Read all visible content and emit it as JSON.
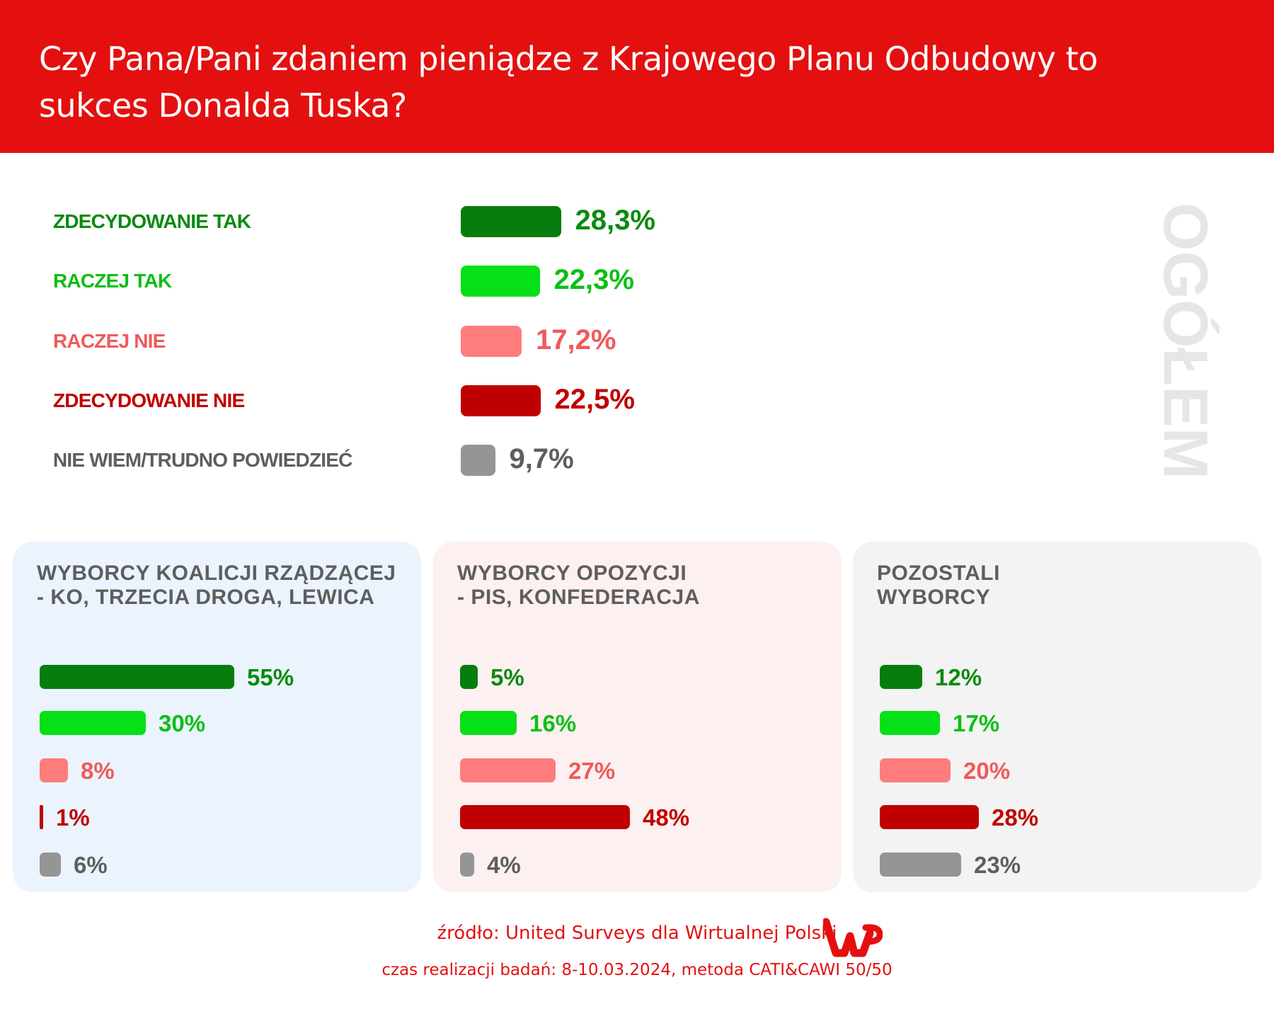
{
  "title": "Czy Pana/Pani zdaniem pieniądze z Krajowego Planu Odbudowy to sukces Donalda Tuska?",
  "colors": {
    "header": "#e41010",
    "categories": [
      {
        "bar": "#067d0c",
        "text": "#0a8a0f"
      },
      {
        "bar": "#06e016",
        "text": "#0bbf14"
      },
      {
        "bar": "#ff7c7c",
        "text": "#f05a5a"
      },
      {
        "bar": "#c00000",
        "text": "#c00000"
      },
      {
        "bar": "#959595",
        "text": "#5e5e5e"
      }
    ]
  },
  "chart_data": [
    {
      "type": "bar",
      "orientation": "horizontal",
      "title": "OGÓŁEM",
      "categories": [
        "ZDECYDOWANIE TAK",
        "RACZEJ TAK",
        "RACZEJ NIE",
        "ZDECYDOWANIE NIE",
        "NIE WIEM/TRUDNO POWIEDZIEĆ"
      ],
      "values": [
        28.3,
        22.3,
        17.2,
        22.5,
        9.7
      ],
      "labels": [
        "28,3%",
        "22,3%",
        "17,2%",
        "22,5%",
        "9,7%"
      ]
    },
    {
      "type": "bar",
      "orientation": "horizontal",
      "title": "WYBORCY KOALICJI RZĄDZĄCEJ - KO, TRZECIA DROGA, LEWICA",
      "title_lines": [
        "WYBORCY KOALICJI RZĄDZĄCEJ",
        "- KO, TRZECIA DROGA, LEWICA"
      ],
      "background": "#ebf4fd",
      "values": [
        55,
        30,
        8,
        1,
        6
      ],
      "labels": [
        "55%",
        "30%",
        "8%",
        "1%",
        "6%"
      ]
    },
    {
      "type": "bar",
      "orientation": "horizontal",
      "title": "WYBORCY OPOZYCJI - PIS, KONFEDERACJA",
      "title_lines": [
        "WYBORCY OPOZYCJI",
        "- PIS, KONFEDERACJA"
      ],
      "background": "#fdf0f0",
      "values": [
        5,
        16,
        27,
        48,
        4
      ],
      "labels": [
        "5%",
        "16%",
        "27%",
        "48%",
        "4%"
      ]
    },
    {
      "type": "bar",
      "orientation": "horizontal",
      "title": "POZOSTALI WYBORCY",
      "title_lines": [
        "POZOSTALI",
        "WYBORCY"
      ],
      "background": "#f3f3f3",
      "values": [
        12,
        17,
        20,
        28,
        23
      ],
      "labels": [
        "12%",
        "17%",
        "20%",
        "28%",
        "23%"
      ]
    }
  ],
  "footer": {
    "source": "źródło: United Surveys dla Wirtualnej Polski",
    "method": "czas realizacji badań: 8-10.03.2024, metoda CATI&CAWI 50/50",
    "logo": "WP"
  }
}
